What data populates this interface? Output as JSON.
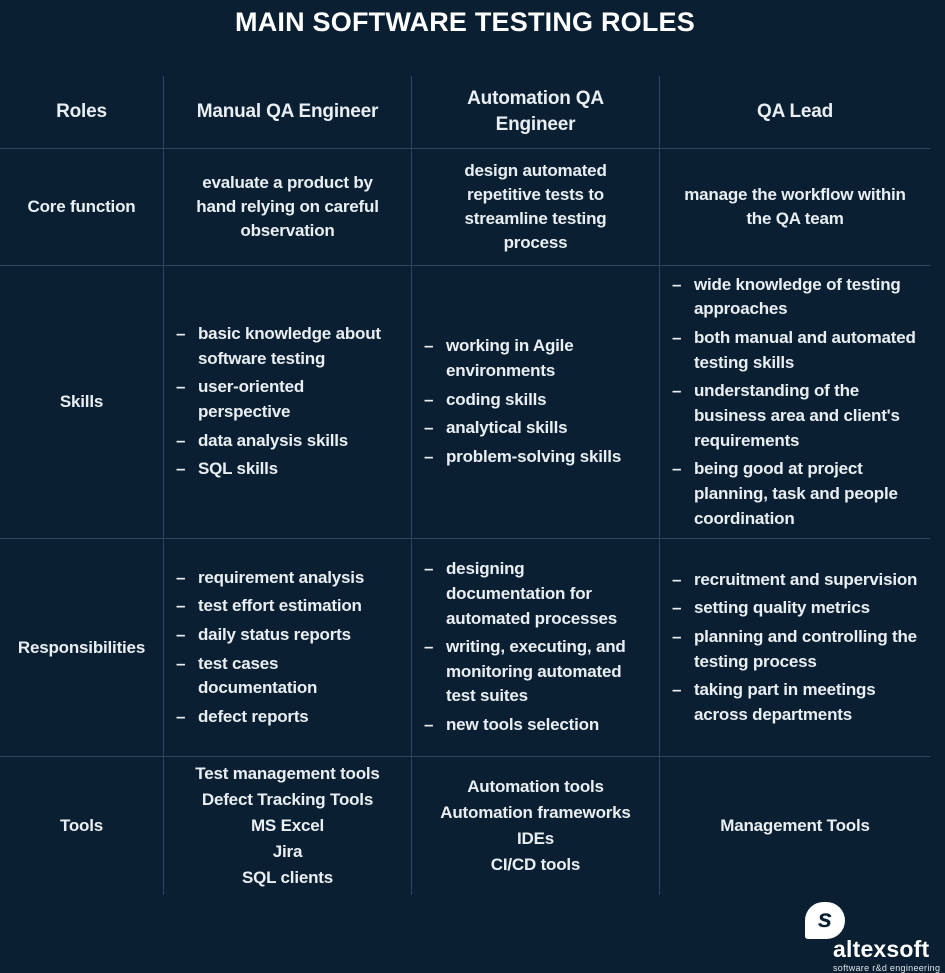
{
  "colors": {
    "background": "#0a2032",
    "grid_line": "#51718a",
    "body_text": "#e9eef3",
    "title_text": "#ffffff",
    "logo_white": "#ffffff"
  },
  "chart_data": {
    "type": "table",
    "title": "MAIN SOFTWARE TESTING ROLES",
    "bullet_char": "–",
    "columns": [
      "Roles",
      "Manual QA Engineer",
      "Automation QA Engineer",
      "QA Lead"
    ],
    "rows": [
      {
        "label": "Core function",
        "cells": [
          {
            "style": "paragraph",
            "text": "evaluate a product by hand relying on careful observation"
          },
          {
            "style": "paragraph",
            "text": "design automated repetitive tests to streamline testing process"
          },
          {
            "style": "paragraph",
            "text": "manage the workflow within the QA team"
          }
        ]
      },
      {
        "label": "Skills",
        "cells": [
          {
            "style": "bullets",
            "items": [
              "basic knowledge about software testing",
              "user-oriented perspective",
              "data analysis skills",
              "SQL skills"
            ]
          },
          {
            "style": "bullets",
            "items": [
              "working in Agile environments",
              "coding skills",
              "analytical skills",
              "problem-solving skills"
            ]
          },
          {
            "style": "bullets",
            "items": [
              "wide knowledge of testing approaches",
              "both manual and automated testing skills",
              "understanding of the business area and client's requirements",
              "being good at project planning, task and people coordination"
            ]
          }
        ]
      },
      {
        "label": "Responsibilities",
        "cells": [
          {
            "style": "bullets",
            "items": [
              "requirement analysis",
              "test effort estimation",
              "daily status reports",
              "test cases documentation",
              "defect reports"
            ]
          },
          {
            "style": "bullets",
            "items": [
              "designing documentation for automated processes",
              "writing, executing, and monitoring automated test suites",
              "new tools selection"
            ]
          },
          {
            "style": "bullets",
            "items": [
              "recruitment and supervision",
              "setting quality metrics",
              "planning and controlling the testing process",
              "taking part in meetings across departments"
            ]
          }
        ]
      },
      {
        "label": "Tools",
        "cells": [
          {
            "style": "lines",
            "lines": [
              "Test management tools",
              "Defect Tracking Tools",
              "MS Excel",
              "Jira",
              "SQL clients"
            ]
          },
          {
            "style": "lines",
            "lines": [
              "Automation tools",
              "Automation frameworks",
              "IDEs",
              "CI/CD tools"
            ]
          },
          {
            "style": "lines",
            "lines": [
              "Management Tools"
            ]
          }
        ]
      }
    ]
  },
  "footer": {
    "brand": "altexsoft",
    "tagline": "software r&d engineering",
    "mark_letter": "s"
  }
}
